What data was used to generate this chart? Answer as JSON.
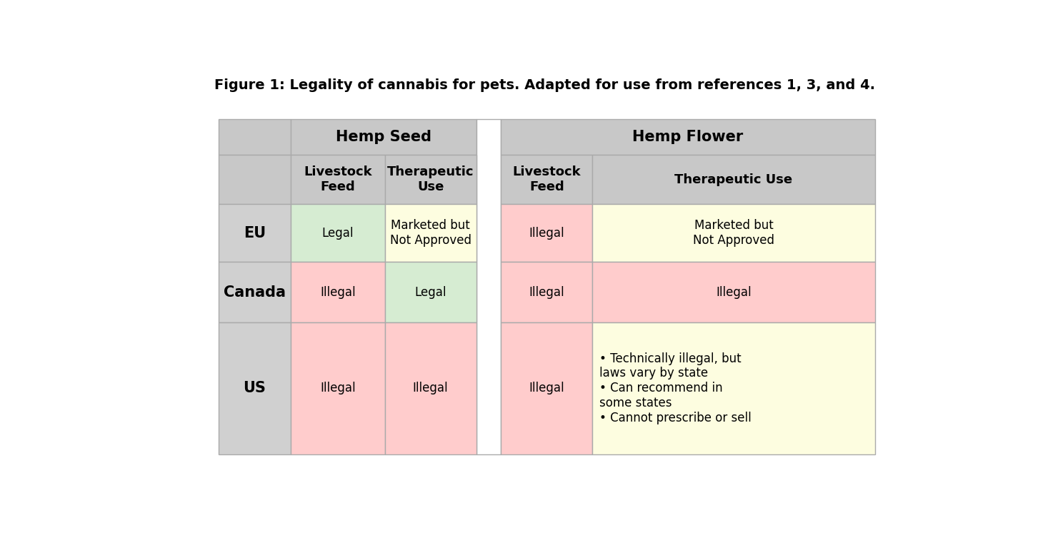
{
  "title": "Figure 1: Legality of cannabis for pets. Adapted for use from references 1, 3, and 4.",
  "title_fontsize": 14,
  "title_fontweight": "bold",
  "bg_color": "#ffffff",
  "header_bg": "#c8c8c8",
  "row_label_bg": "#d0d0d0",
  "col_groups": [
    "Hemp Seed",
    "Hemp Flower"
  ],
  "col_sub": [
    "Livestock\nFeed",
    "Therapeutic\nUse",
    "Livestock\nFeed",
    "Therapeutic Use"
  ],
  "rows": [
    "EU",
    "Canada",
    "US"
  ],
  "cell_data": [
    [
      {
        "text": "Legal",
        "color": "#d6ecd2"
      },
      {
        "text": "Marketed but\nNot Approved",
        "color": "#fdfde0"
      },
      {
        "text": "Illegal",
        "color": "#ffcccc"
      },
      {
        "text": "Marketed but\nNot Approved",
        "color": "#fdfde0"
      }
    ],
    [
      {
        "text": "Illegal",
        "color": "#ffcccc"
      },
      {
        "text": "Legal",
        "color": "#d6ecd2"
      },
      {
        "text": "Illegal",
        "color": "#ffcccc"
      },
      {
        "text": "Illegal",
        "color": "#ffcccc"
      }
    ],
    [
      {
        "text": "Illegal",
        "color": "#ffcccc"
      },
      {
        "text": "Illegal",
        "color": "#ffcccc"
      },
      {
        "text": "Illegal",
        "color": "#ffcccc"
      },
      {
        "text": "• Technically illegal, but\nlaws vary by state\n• Can recommend in\nsome states\n• Cannot prescribe or sell",
        "color": "#fdfde0"
      }
    ]
  ],
  "border_color": "#aaaaaa",
  "text_color": "#000000",
  "cell_fontsize": 12,
  "header_fontsize": 13,
  "group_header_fontsize": 15,
  "row_label_fontsize": 15
}
